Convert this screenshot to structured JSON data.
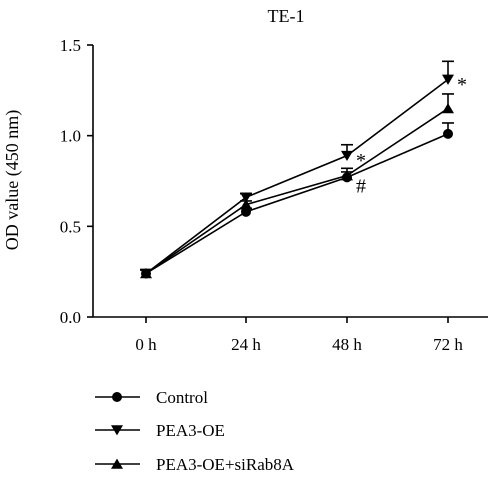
{
  "chart_data": {
    "type": "line",
    "title": "TE-1",
    "xlabel": "",
    "ylabel": "OD value (450 nm)",
    "categories": [
      "0 h",
      "24 h",
      "48 h",
      "72 h"
    ],
    "ylim": [
      0,
      1.5
    ],
    "yticks": [
      "0.0",
      "0.5",
      "1.0",
      "1.5"
    ],
    "grid": false,
    "legend_position": "bottom-left",
    "series": [
      {
        "name": "Control",
        "marker": "circle",
        "values": [
          0.24,
          0.58,
          0.77,
          1.01
        ],
        "errors": [
          0.02,
          0.02,
          0.03,
          0.06
        ]
      },
      {
        "name": "PEA3-OE",
        "marker": "triangle-down",
        "values": [
          0.24,
          0.66,
          0.89,
          1.31
        ],
        "errors": [
          0.02,
          0.02,
          0.06,
          0.1
        ]
      },
      {
        "name": "PEA3-OE+siRab8A",
        "marker": "triangle-up",
        "values": [
          0.24,
          0.62,
          0.78,
          1.15
        ],
        "errors": [
          0.02,
          0.02,
          0.04,
          0.08
        ]
      }
    ],
    "annotations": [
      {
        "text": "*",
        "category": "48 h",
        "y": 0.87
      },
      {
        "text": "#",
        "category": "48 h",
        "y": 0.73
      },
      {
        "text": "*",
        "category": "72 h",
        "y": 1.29
      }
    ]
  }
}
